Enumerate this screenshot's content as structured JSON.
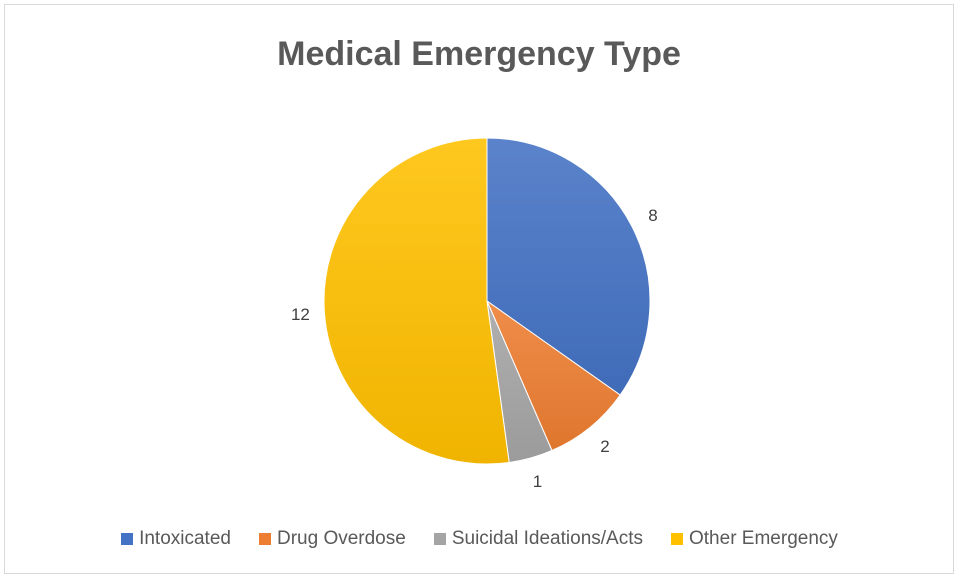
{
  "chart_data": {
    "type": "pie",
    "title": "Medical Emergency Type",
    "categories": [
      "Intoxicated",
      "Drug Overdose",
      "Suicidal Ideations/Acts",
      "Other Emergency"
    ],
    "values": [
      8,
      2,
      1,
      12
    ],
    "colors": [
      "#4472c4",
      "#ed7d31",
      "#a5a5a5",
      "#ffc000"
    ],
    "data_labels": [
      "8",
      "2",
      "1",
      "12"
    ],
    "legend_position": "bottom",
    "start_angle_deg": 0,
    "direction": "clockwise"
  }
}
